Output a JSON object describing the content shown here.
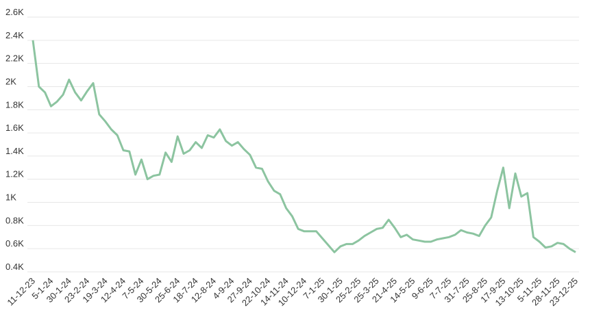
{
  "chart_data": {
    "type": "line",
    "categories": [
      "11-12-23",
      null,
      null,
      "5-1-24",
      null,
      null,
      "30-1-24",
      null,
      null,
      "23-2-24",
      null,
      null,
      "19-3-24",
      null,
      null,
      "12-4-24",
      null,
      null,
      "7-5-24",
      null,
      null,
      "30-5-24",
      null,
      null,
      "25-6-24",
      null,
      null,
      "18-7-24",
      null,
      null,
      "12-8-24",
      null,
      null,
      "4-9-24",
      null,
      null,
      "27-9-24",
      null,
      null,
      "22-10-24",
      null,
      null,
      "14-11-24",
      null,
      null,
      "10-12-24",
      null,
      null,
      "7-1-25",
      null,
      null,
      "30-1-25",
      null,
      null,
      "25-2-25",
      null,
      null,
      "25-3-25",
      null,
      null,
      "21-4-25",
      null,
      null,
      "14-5-25",
      null,
      null,
      "9-6-25",
      null,
      null,
      "7-7-25",
      null,
      null,
      "31-7-25",
      null,
      null,
      "25-8-25",
      null,
      null,
      "17-9-25",
      null,
      null,
      "13-10-25",
      null,
      null,
      "5-11-25",
      null,
      null,
      "28-11-25",
      null,
      null,
      "23-12-25"
    ],
    "values": [
      2400,
      2000,
      1950,
      1830,
      1870,
      1930,
      2060,
      1950,
      1880,
      1960,
      2030,
      1760,
      1700,
      1630,
      1580,
      1450,
      1440,
      1240,
      1370,
      1200,
      1230,
      1240,
      1430,
      1350,
      1570,
      1420,
      1450,
      1520,
      1470,
      1580,
      1560,
      1630,
      1530,
      1490,
      1520,
      1460,
      1410,
      1300,
      1290,
      1180,
      1100,
      1070,
      950,
      880,
      770,
      750,
      750,
      750,
      690,
      630,
      570,
      620,
      640,
      640,
      670,
      710,
      740,
      770,
      780,
      850,
      780,
      700,
      720,
      680,
      670,
      660,
      660,
      680,
      690,
      700,
      720,
      760,
      740,
      730,
      710,
      800,
      870,
      1100,
      1300,
      950,
      1250,
      1050,
      1080,
      700,
      660,
      610,
      620,
      650,
      640,
      600,
      570
    ],
    "color": "#8cc4a0",
    "ylim": [
      400,
      2600
    ],
    "yticks": [
      {
        "value": 400,
        "label": "0.4K"
      },
      {
        "value": 600,
        "label": "0.6K"
      },
      {
        "value": 800,
        "label": "0.8K"
      },
      {
        "value": 1000,
        "label": "1K"
      },
      {
        "value": 1200,
        "label": "1.2K"
      },
      {
        "value": 1400,
        "label": "1.4K"
      },
      {
        "value": 1600,
        "label": "1.6K"
      },
      {
        "value": 1800,
        "label": "1.8K"
      },
      {
        "value": 2000,
        "label": "2K"
      },
      {
        "value": 2200,
        "label": "2.2K"
      },
      {
        "value": 2400,
        "label": "2.4K"
      },
      {
        "value": 2600,
        "label": "2.6K"
      }
    ],
    "grid": true
  }
}
